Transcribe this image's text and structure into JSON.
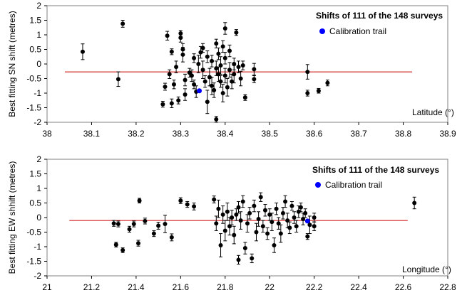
{
  "chart_data": [
    {
      "type": "scatter",
      "annotation_title": "Shifts of 111 of the 148 surveys",
      "legend": [
        {
          "label": "Calibration trail",
          "color": "#0000ff",
          "placement": "top-right"
        }
      ],
      "xlabel": "Latitude (°)",
      "ylabel": "Best fitting SN shift (metres)",
      "xlim": [
        38,
        38.9
      ],
      "ylim": [
        -2,
        2
      ],
      "xticks": [
        "38",
        "38.1",
        "38.2",
        "38.3",
        "38.4",
        "38.5",
        "38.6",
        "38.7",
        "38.8",
        "38.9"
      ],
      "yticks": [
        "2",
        "1.5",
        "1",
        "0.5",
        "0",
        "-0.5",
        "-1",
        "-1.5",
        "-2"
      ],
      "grid": false,
      "reference_line": {
        "y": -0.27,
        "x_start": 38.04,
        "x_end": 38.82,
        "color": "#cc0000"
      },
      "series": [
        {
          "color": "#000000",
          "points": [
            [
              38.08,
              0.42,
              0.27
            ],
            [
              38.16,
              -0.52,
              0.25
            ],
            [
              38.17,
              1.38,
              0.12
            ],
            [
              38.26,
              -1.38,
              0.1
            ],
            [
              38.265,
              -0.78,
              0.12
            ],
            [
              38.27,
              0.97,
              0.15
            ],
            [
              38.275,
              -0.35,
              0.15
            ],
            [
              38.28,
              0.42,
              0.1
            ],
            [
              38.28,
              -1.35,
              0.15
            ],
            [
              38.285,
              -0.7,
              0.15
            ],
            [
              38.29,
              -0.1,
              0.2
            ],
            [
              38.295,
              -1.25,
              0.12
            ],
            [
              38.3,
              0.9,
              0.15
            ],
            [
              38.3,
              1.05,
              0.1
            ],
            [
              38.305,
              0.5,
              0.2
            ],
            [
              38.305,
              0.32,
              0.25
            ],
            [
              38.31,
              -0.55,
              0.2
            ],
            [
              38.31,
              -1.05,
              0.2
            ],
            [
              38.32,
              -0.3,
              0.15
            ],
            [
              38.325,
              -0.4,
              0.2
            ],
            [
              38.33,
              0.2,
              0.15
            ],
            [
              38.33,
              -0.7,
              0.15
            ],
            [
              38.335,
              -0.95,
              0.2
            ],
            [
              38.34,
              0.0,
              0.3
            ],
            [
              38.345,
              0.4,
              0.2
            ],
            [
              38.35,
              -0.2,
              0.3
            ],
            [
              38.35,
              0.55,
              0.15
            ],
            [
              38.355,
              -0.6,
              0.2
            ],
            [
              38.36,
              -1.3,
              0.4
            ],
            [
              38.36,
              0.25,
              0.2
            ],
            [
              38.365,
              -0.45,
              0.3
            ],
            [
              38.37,
              0.1,
              0.2
            ],
            [
              38.37,
              -0.75,
              0.3
            ],
            [
              38.375,
              -0.9,
              0.25
            ],
            [
              38.38,
              0.7,
              0.15
            ],
            [
              38.38,
              -0.15,
              0.25
            ],
            [
              38.38,
              -1.9,
              0.1
            ],
            [
              38.385,
              0.35,
              0.2
            ],
            [
              38.385,
              -0.35,
              0.25
            ],
            [
              38.39,
              -0.05,
              0.3
            ],
            [
              38.39,
              -0.6,
              0.2
            ],
            [
              38.395,
              0.6,
              0.2
            ],
            [
              38.395,
              -1.0,
              0.3
            ],
            [
              38.4,
              1.22,
              0.2
            ],
            [
              38.4,
              0.2,
              0.2
            ],
            [
              38.4,
              -0.4,
              0.25
            ],
            [
              38.405,
              -0.8,
              0.3
            ],
            [
              38.41,
              0.45,
              0.2
            ],
            [
              38.41,
              -0.2,
              0.25
            ],
            [
              38.415,
              -0.6,
              0.25
            ],
            [
              38.42,
              0.0,
              0.2
            ],
            [
              38.42,
              -0.35,
              0.3
            ],
            [
              38.425,
              1.08,
              0.1
            ],
            [
              38.43,
              -0.1,
              0.2
            ],
            [
              38.435,
              -0.5,
              0.25
            ],
            [
              38.44,
              -0.05,
              0.15
            ],
            [
              38.445,
              -1.15,
              0.1
            ],
            [
              38.465,
              -0.18,
              0.2
            ],
            [
              38.465,
              -0.52,
              0.12
            ],
            [
              38.585,
              -0.27,
              0.25
            ],
            [
              38.585,
              -1.0,
              0.1
            ],
            [
              38.61,
              -0.92,
              0.08
            ],
            [
              38.63,
              -0.65,
              0.1
            ]
          ]
        },
        {
          "name": "Calibration trail",
          "color": "#0000ff",
          "points": [
            [
              38.342,
              -0.92,
              0.05
            ]
          ]
        }
      ]
    },
    {
      "type": "scatter",
      "annotation_title": "Shifts of 111 of the 148 surveys",
      "legend": [
        {
          "label": "Calibration trail",
          "color": "#0000ff",
          "placement": "top-right"
        }
      ],
      "xlabel": "Longitude (°)",
      "ylabel": "Best fitting EW shhift (metres)",
      "xlim": [
        21,
        22.8
      ],
      "ylim": [
        -2,
        2
      ],
      "xticks": [
        "21",
        "21.2",
        "21.4",
        "21.6",
        "21.8",
        "22",
        "22.2",
        "22.4",
        "22.6",
        "22.8"
      ],
      "yticks": [
        "2",
        "1.5",
        "1",
        "0.5",
        "0",
        "-0.5",
        "-1",
        "-1.5",
        "-2"
      ],
      "grid": false,
      "reference_line": {
        "y": -0.1,
        "x_start": 21.1,
        "x_end": 22.62,
        "color": "#cc0000"
      },
      "series": [
        {
          "color": "#000000",
          "points": [
            [
              21.3,
              -0.2,
              0.1
            ],
            [
              21.31,
              -0.93,
              0.08
            ],
            [
              21.32,
              -0.22,
              0.1
            ],
            [
              21.34,
              -1.12,
              0.08
            ],
            [
              21.37,
              -0.4,
              0.1
            ],
            [
              21.39,
              -0.22,
              0.1
            ],
            [
              21.41,
              -0.88,
              0.1
            ],
            [
              21.415,
              0.58,
              0.08
            ],
            [
              21.44,
              -0.12,
              0.1
            ],
            [
              21.48,
              -0.55,
              0.1
            ],
            [
              21.5,
              -0.28,
              0.12
            ],
            [
              21.53,
              -0.22,
              0.3
            ],
            [
              21.56,
              -0.68,
              0.12
            ],
            [
              21.6,
              0.58,
              0.1
            ],
            [
              21.63,
              0.45,
              0.1
            ],
            [
              21.66,
              0.38,
              0.12
            ],
            [
              21.75,
              0.62,
              0.12
            ],
            [
              21.76,
              -0.2,
              0.25
            ],
            [
              21.77,
              0.3,
              0.3
            ],
            [
              21.78,
              -0.95,
              0.4
            ],
            [
              21.79,
              0.1,
              0.3
            ],
            [
              21.8,
              -0.45,
              0.35
            ],
            [
              21.81,
              0.2,
              0.3
            ],
            [
              21.82,
              -0.3,
              0.3
            ],
            [
              21.83,
              0.0,
              0.25
            ],
            [
              21.84,
              -0.6,
              0.3
            ],
            [
              21.85,
              0.1,
              0.2
            ],
            [
              21.86,
              -1.45,
              0.15
            ],
            [
              21.86,
              0.35,
              0.2
            ],
            [
              21.87,
              -0.1,
              0.3
            ],
            [
              21.88,
              0.55,
              0.2
            ],
            [
              21.89,
              -1.05,
              0.2
            ],
            [
              21.9,
              -0.2,
              0.3
            ],
            [
              21.91,
              0.15,
              0.2
            ],
            [
              21.92,
              -1.4,
              0.15
            ],
            [
              21.93,
              0.4,
              0.2
            ],
            [
              21.94,
              -0.5,
              0.3
            ],
            [
              21.95,
              -0.05,
              0.25
            ],
            [
              21.96,
              0.7,
              0.15
            ],
            [
              21.97,
              -0.3,
              0.2
            ],
            [
              21.98,
              0.25,
              0.2
            ],
            [
              21.99,
              -0.55,
              0.2
            ],
            [
              22.0,
              0.1,
              0.2
            ],
            [
              22.01,
              -0.15,
              0.3
            ],
            [
              22.02,
              -0.95,
              0.25
            ],
            [
              22.03,
              0.3,
              0.2
            ],
            [
              22.04,
              -0.2,
              0.2
            ],
            [
              22.05,
              -0.55,
              0.3
            ],
            [
              22.06,
              0.15,
              0.2
            ],
            [
              22.07,
              0.55,
              0.2
            ],
            [
              22.08,
              -0.1,
              0.25
            ],
            [
              22.09,
              -0.35,
              0.2
            ],
            [
              22.1,
              0.4,
              0.15
            ],
            [
              22.11,
              0.0,
              0.2
            ],
            [
              22.12,
              -0.3,
              0.2
            ],
            [
              22.13,
              0.2,
              0.2
            ],
            [
              22.14,
              0.35,
              0.15
            ],
            [
              22.15,
              -0.05,
              0.2
            ],
            [
              22.16,
              0.15,
              0.15
            ],
            [
              22.17,
              -0.65,
              0.1
            ],
            [
              22.18,
              -0.25,
              0.3
            ],
            [
              22.2,
              -0.3,
              0.15
            ],
            [
              22.2,
              0.0,
              0.15
            ],
            [
              22.65,
              0.5,
              0.2
            ]
          ]
        },
        {
          "name": "Calibration trail",
          "color": "#0000ff",
          "points": [
            [
              22.17,
              -0.12,
              0.05
            ]
          ]
        }
      ]
    }
  ]
}
